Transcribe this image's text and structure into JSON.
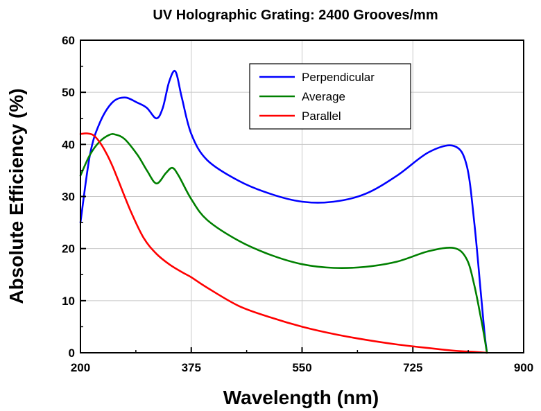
{
  "chart_data": {
    "type": "line",
    "title": "UV Holographic Grating: 2400 Grooves/mm",
    "xlabel": "Wavelength (nm)",
    "ylabel": "Absolute Efficiency (%)",
    "xlim": [
      200,
      900
    ],
    "ylim": [
      0,
      60
    ],
    "xticks": [
      200,
      375,
      550,
      725,
      900
    ],
    "yticks": [
      0,
      10,
      20,
      30,
      40,
      50,
      60
    ],
    "grid": true,
    "legend_position": "top-center",
    "series": [
      {
        "name": "Perpendicular",
        "color": "#0000ff",
        "x": [
          200,
          215,
          230,
          250,
          270,
          290,
          305,
          320,
          330,
          340,
          350,
          360,
          375,
          400,
          450,
          500,
          550,
          600,
          650,
          700,
          750,
          790,
          810,
          822,
          832,
          838,
          842
        ],
        "y": [
          25,
          38,
          44,
          48,
          49,
          48,
          47,
          45,
          47,
          52,
          54,
          49,
          42,
          37,
          33,
          30.5,
          29,
          29,
          30.5,
          34,
          38.5,
          39.7,
          36,
          25,
          12,
          4,
          0
        ]
      },
      {
        "name": "Average",
        "color": "#008000",
        "x": [
          200,
          215,
          230,
          245,
          255,
          270,
          290,
          305,
          320,
          335,
          345,
          355,
          375,
          400,
          450,
          500,
          550,
          600,
          650,
          700,
          750,
          790,
          810,
          822,
          832,
          838,
          842
        ],
        "y": [
          34,
          38,
          40.5,
          41.8,
          41.9,
          41,
          38,
          35,
          32.5,
          34.5,
          35.5,
          34,
          29.5,
          25.5,
          21.5,
          18.8,
          17,
          16.3,
          16.5,
          17.5,
          19.5,
          20.1,
          18,
          13,
          7,
          3,
          0
        ]
      },
      {
        "name": "Parallel",
        "color": "#ff0000",
        "x": [
          200,
          210,
          220,
          230,
          240,
          250,
          260,
          280,
          300,
          320,
          340,
          360,
          375,
          400,
          450,
          500,
          550,
          600,
          650,
          700,
          750,
          800,
          820,
          842
        ],
        "y": [
          42,
          42.1,
          41.8,
          40.5,
          38.5,
          36,
          33,
          27,
          22,
          19,
          17,
          15.5,
          14.5,
          12.5,
          9,
          6.8,
          5,
          3.6,
          2.5,
          1.6,
          0.9,
          0.3,
          0.2,
          0
        ]
      }
    ]
  }
}
